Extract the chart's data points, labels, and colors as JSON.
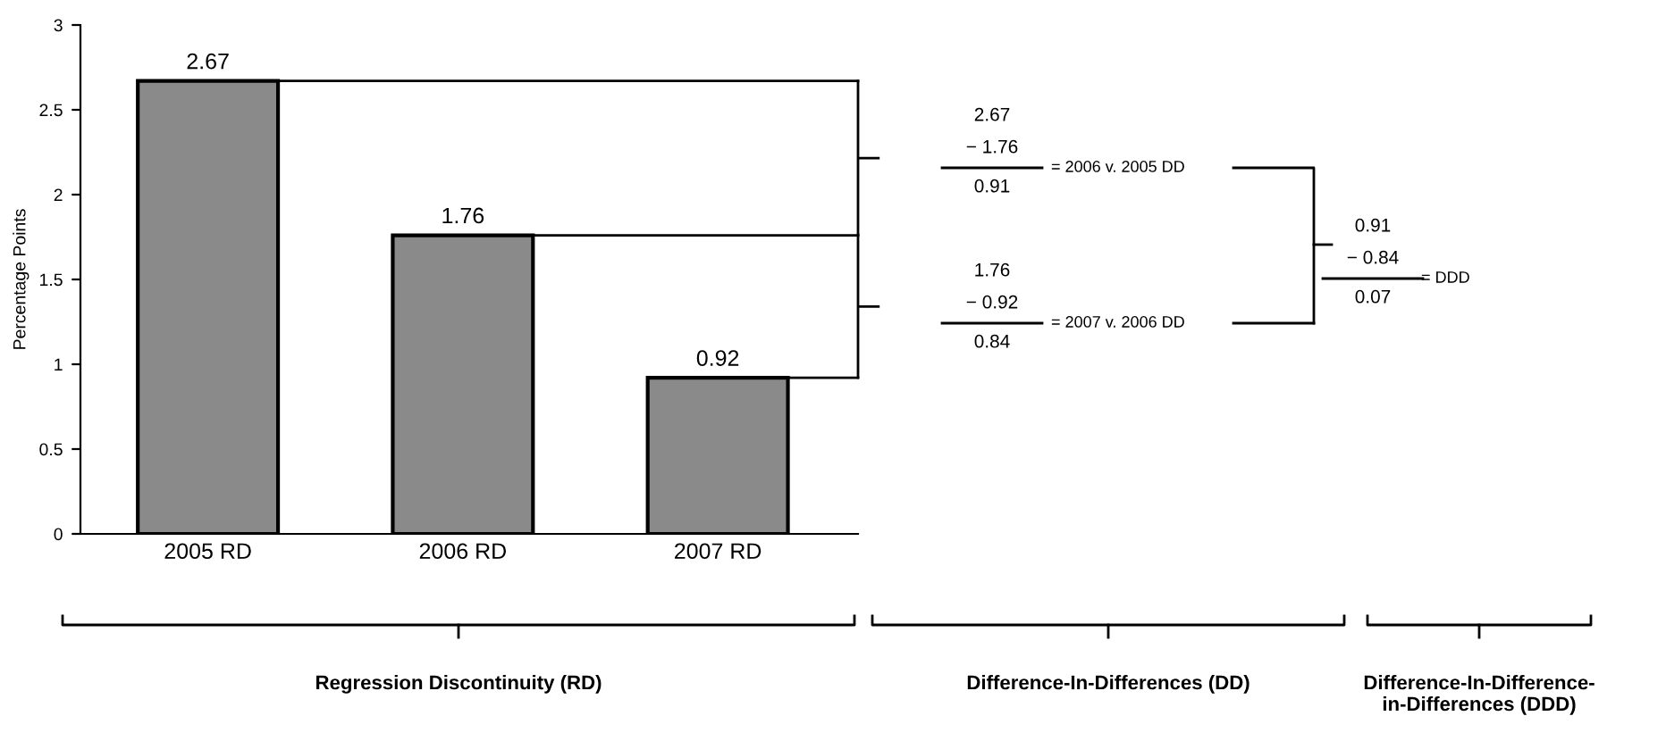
{
  "chart_data": {
    "type": "bar",
    "ylabel": "Percentage Points",
    "categories": [
      "2005 RD",
      "2006 RD",
      "2007 RD"
    ],
    "values": [
      2.67,
      1.76,
      0.92
    ],
    "color": "#8a8a8a",
    "data_labels": true,
    "ref_lines": [
      {
        "axis": "y",
        "value": 2.67
      },
      {
        "axis": "y",
        "value": 1.76
      },
      {
        "axis": "y",
        "value": 0.92
      }
    ],
    "ylim": [
      0,
      3
    ],
    "yticks": [
      0,
      0.5,
      1,
      1.5,
      2,
      2.5,
      3
    ],
    "grid": false,
    "legend": false,
    "annotations": [
      "2.67",
      "− 1.76",
      "0.91",
      "= 2006 v. 2005 DD",
      "1.76",
      "− 0.92",
      "0.84",
      "= 2007 v. 2006 DD",
      "0.91",
      "− 0.84",
      "0.07",
      "= DDD",
      "Regression Discontinuity (RD)",
      "Difference-In-Differences (DD)",
      "Difference-In-Difference-\nin-Differences (DDD)"
    ]
  }
}
